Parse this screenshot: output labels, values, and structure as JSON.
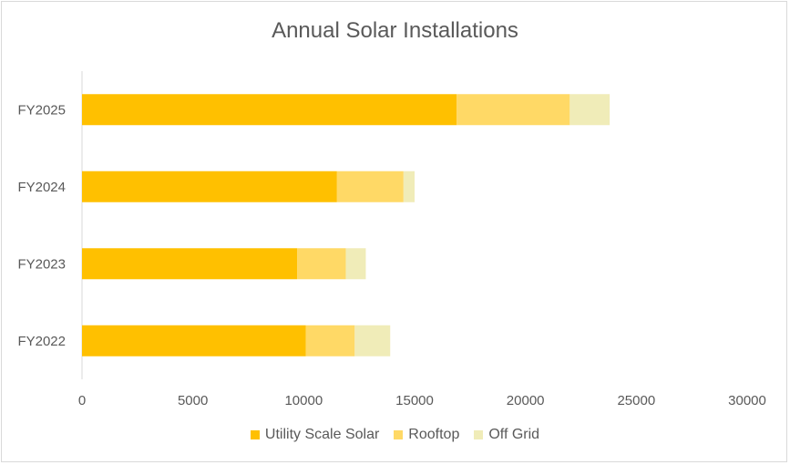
{
  "chart_data": {
    "type": "bar",
    "orientation": "horizontal",
    "stacked": true,
    "title": "Annual Solar Installations",
    "categories": [
      "FY2022",
      "FY2023",
      "FY2024",
      "FY2025"
    ],
    "series": [
      {
        "name": "Utility Scale Solar",
        "values": [
          10100,
          9700,
          11500,
          16900
        ],
        "color": "#FFC000"
      },
      {
        "name": "Rooftop",
        "values": [
          2200,
          2200,
          3000,
          5100
        ],
        "color": "#FFD966"
      },
      {
        "name": "Off Grid",
        "values": [
          1600,
          900,
          500,
          1800
        ],
        "color": "#F0ECB8"
      }
    ],
    "xlim": [
      0,
      30000
    ],
    "xticks": [
      "0",
      "5000",
      "10000",
      "15000",
      "20000",
      "25000",
      "30000"
    ],
    "grid": false,
    "legend": "bottom"
  }
}
